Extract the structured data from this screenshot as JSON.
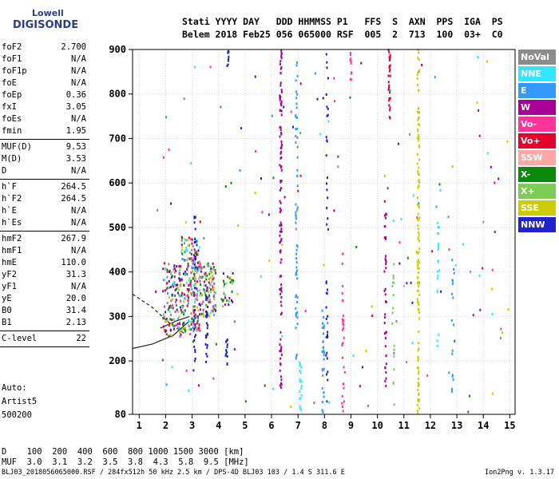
{
  "logo": {
    "top": "Lowell",
    "main": "DIGISONDE"
  },
  "header": {
    "line1": "Stati YYYY DAY   DDD HHMMSS P1   FFS  S  AXN  PPS  IGA  PS",
    "line2": "Belem 2018 Feb25 056 065000 RSF  005  2  713  100  03+  C0"
  },
  "params": [
    {
      "name": "foF2",
      "value": "2.700"
    },
    {
      "name": "foF1",
      "value": "N/A"
    },
    {
      "name": "foF1p",
      "value": "N/A"
    },
    {
      "name": "foE",
      "value": "N/A"
    },
    {
      "name": "foEp",
      "value": "0.36"
    },
    {
      "name": "fxI",
      "value": "3.05"
    },
    {
      "name": "foEs",
      "value": "N/A"
    },
    {
      "name": "fmin",
      "value": "1.95"
    },
    {
      "sep": true
    },
    {
      "name": "MUF(D)",
      "value": "9.53"
    },
    {
      "name": "M(D)",
      "value": "3.53"
    },
    {
      "name": "D",
      "value": "N/A"
    },
    {
      "sep": true
    },
    {
      "name": "h`F",
      "value": "264.5"
    },
    {
      "name": "h`F2",
      "value": "264.5"
    },
    {
      "name": "h`E",
      "value": "N/A"
    },
    {
      "name": "h`Es",
      "value": "N/A"
    },
    {
      "sep": true
    },
    {
      "name": "hmF2",
      "value": "267.9"
    },
    {
      "name": "hmF1",
      "value": "N/A"
    },
    {
      "name": "hmE",
      "value": "110.0"
    },
    {
      "name": "yF2",
      "value": "31.3"
    },
    {
      "name": "yF1",
      "value": "N/A"
    },
    {
      "name": "yE",
      "value": "20.0"
    },
    {
      "name": "B0",
      "value": "31.4"
    },
    {
      "name": "B1",
      "value": "2.13"
    },
    {
      "sep": true
    },
    {
      "name": "C-level",
      "value": "22"
    },
    {
      "sep": true
    }
  ],
  "auto": {
    "line1": "Auto:",
    "line2": "Artist5",
    "line3": "500200"
  },
  "legend": [
    {
      "label": "NoVal",
      "color": "#8c8c8c"
    },
    {
      "label": "NNE",
      "color": "#33e6ff"
    },
    {
      "label": "E",
      "color": "#3399ff"
    },
    {
      "label": "W",
      "color": "#aa0099"
    },
    {
      "label": "Vo-",
      "color": "#ff3399"
    },
    {
      "label": "Vo+",
      "color": "#e6002e"
    },
    {
      "label": "SSW",
      "color": "#ffa6a6"
    },
    {
      "label": "X-",
      "color": "#0a8a0a"
    },
    {
      "label": "X+",
      "color": "#7ccc55"
    },
    {
      "label": "SSE",
      "color": "#cccc00"
    },
    {
      "label": "NNW",
      "color": "#2222cc"
    }
  ],
  "bottom": {
    "d_line": "D    100  200  400  600  800 1000 1500 3000 [km]",
    "muf_line": "MUF  3.0  3.1  3.2  3.5  3.8  4.3  5.8  9.5 [MHz]"
  },
  "footer": {
    "left": "BLJ03_2018056065000.RSF / 284fx512h 50 kHz 2.5 km / DPS-4D BLJ03 103 / 1.4 S 311.6 E",
    "right": "Ion2Png v. 1.3.17"
  },
  "chart_data": {
    "type": "scatter",
    "xlim": [
      0.75,
      15.2
    ],
    "ylim": [
      80,
      900
    ],
    "x_ticks": [
      1,
      2,
      3,
      4,
      5,
      6,
      7,
      8,
      9,
      10,
      11,
      12,
      13,
      14,
      15
    ],
    "y_ticks": [
      80,
      200,
      300,
      400,
      500,
      600,
      700,
      800,
      900
    ],
    "grid": true,
    "legend_placement": "right",
    "trace_lines": [
      {
        "style": "solid",
        "points": [
          [
            0.75,
            228
          ],
          [
            1.5,
            238
          ],
          [
            2.3,
            258
          ],
          [
            2.9,
            290
          ]
        ]
      },
      {
        "style": "dashed",
        "points": [
          [
            0.75,
            350
          ],
          [
            1.5,
            320
          ],
          [
            2.2,
            282
          ],
          [
            2.7,
            262
          ]
        ]
      },
      {
        "style": "solid",
        "points": [
          [
            1.8,
            274
          ],
          [
            2.4,
            290
          ],
          [
            2.9,
            300
          ]
        ]
      }
    ],
    "clusters": [
      {
        "x": [
          1.9,
          2.6
        ],
        "y": [
          255,
          420
        ],
        "n": 140,
        "colors": [
          "#aa0099",
          "#ff3399",
          "#e6002e",
          "#3399ff",
          "#0a8a0a",
          "#7ccc55",
          "#cccc00",
          "#2222cc",
          "#33e6ff",
          "#8c8c8c"
        ]
      },
      {
        "x": [
          2.6,
          3.3
        ],
        "y": [
          260,
          480
        ],
        "n": 220,
        "colors": [
          "#aa0099",
          "#ff3399",
          "#e6002e",
          "#3399ff",
          "#0a8a0a",
          "#7ccc55",
          "#cccc00",
          "#2222cc",
          "#33e6ff",
          "#8c8c8c"
        ]
      },
      {
        "x": [
          3.3,
          3.9
        ],
        "y": [
          300,
          420
        ],
        "n": 110,
        "colors": [
          "#cccc00",
          "#0a8a0a",
          "#7ccc55",
          "#aa0099",
          "#3399ff",
          "#ff3399"
        ]
      },
      {
        "x": [
          4.1,
          4.6
        ],
        "y": [
          320,
          400
        ],
        "n": 30,
        "colors": [
          "#0a8a0a",
          "#aa0099",
          "#7ccc55",
          "#2222cc"
        ]
      }
    ],
    "vertical_traces": [
      {
        "x": 3.1,
        "y": [
          200,
          530
        ],
        "n": 30,
        "color": "#2222cc"
      },
      {
        "x": 3.55,
        "y": [
          180,
          380
        ],
        "n": 30,
        "color": "#2222cc"
      },
      {
        "x": 4.3,
        "y": [
          180,
          260
        ],
        "n": 12,
        "color": "#2222cc"
      },
      {
        "x": 4.35,
        "y": [
          860,
          900
        ],
        "n": 8,
        "color": "#2222cc"
      },
      {
        "x": 6.35,
        "y": [
          140,
          900
        ],
        "n": 110,
        "color": "#aa0099"
      },
      {
        "x": 6.95,
        "y": [
          200,
          880
        ],
        "n": 60,
        "color": "#3399ff"
      },
      {
        "x": 7.1,
        "y": [
          80,
          200
        ],
        "n": 18,
        "color": "#33e6ff"
      },
      {
        "x": 7.95,
        "y": [
          80,
          320
        ],
        "n": 30,
        "color": "#3399ff"
      },
      {
        "x": 8.1,
        "y": [
          140,
          900
        ],
        "n": 40,
        "color": "#2222cc"
      },
      {
        "x": 8.7,
        "y": [
          80,
          450
        ],
        "n": 30,
        "color": "#ff3399"
      },
      {
        "x": 9.0,
        "y": [
          830,
          900
        ],
        "n": 10,
        "color": "#ff3399"
      },
      {
        "x": 10.3,
        "y": [
          140,
          560
        ],
        "n": 40,
        "color": "#aa0099"
      },
      {
        "x": 10.45,
        "y": [
          740,
          900
        ],
        "n": 30,
        "color": "#e6002e"
      },
      {
        "x": 10.6,
        "y": [
          100,
          420
        ],
        "n": 18,
        "color": "#7ccc55"
      },
      {
        "x": 11.55,
        "y": [
          80,
          900
        ],
        "n": 120,
        "color": "#cccc00"
      },
      {
        "x": 12.3,
        "y": [
          220,
          520
        ],
        "n": 20,
        "color": "#33e6ff"
      },
      {
        "x": 12.85,
        "y": [
          100,
          440
        ],
        "n": 16,
        "color": "#3399ff"
      }
    ],
    "scattered": {
      "x": [
        1.5,
        15.0
      ],
      "y": [
        85,
        890
      ],
      "n": 160,
      "colors": [
        "#33e6ff",
        "#3399ff",
        "#2222cc",
        "#aa0099",
        "#ff3399",
        "#0a8a0a",
        "#cccc00",
        "#8c8c8c",
        "#e6002e"
      ]
    }
  }
}
